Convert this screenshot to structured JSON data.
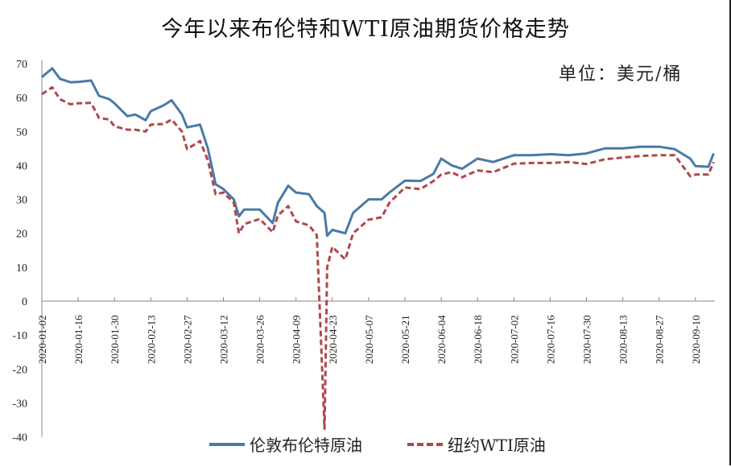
{
  "title": "今年以来布伦特和WTI原油期货价格走势",
  "unit_label": "单位：美元/桶",
  "legend": [
    {
      "label": "伦敦布伦特原油",
      "color": "#4a7aa8",
      "style": "solid"
    },
    {
      "label": "纽约WTI原油",
      "color": "#b0484b",
      "style": "dashed"
    }
  ],
  "chart_data": {
    "type": "line",
    "title": "今年以来布伦特和WTI原油期货价格走势",
    "xlabel": "",
    "ylabel": "单位：美元/桶",
    "ylim": [
      -40,
      70
    ],
    "yticks": [
      70,
      60,
      50,
      40,
      30,
      20,
      10,
      0,
      -10,
      -20,
      -30,
      -40
    ],
    "xtick_labels": [
      "2020-01-02",
      "2020-01-16",
      "2020-01-30",
      "2020-02-13",
      "2020-02-27",
      "2020-03-12",
      "2020-03-26",
      "2020-04-09",
      "2020-04-23",
      "2020-05-07",
      "2020-05-21",
      "2020-06-04",
      "2020-06-18",
      "2020-07-02",
      "2020-07-16",
      "2020-07-30",
      "2020-08-13",
      "2020-08-27",
      "2020-09-10"
    ],
    "grid": false,
    "legend_position": "bottom",
    "x": [
      "2020-01-02",
      "2020-01-06",
      "2020-01-09",
      "2020-01-13",
      "2020-01-16",
      "2020-01-21",
      "2020-01-24",
      "2020-01-28",
      "2020-01-30",
      "2020-02-04",
      "2020-02-07",
      "2020-02-11",
      "2020-02-13",
      "2020-02-18",
      "2020-02-21",
      "2020-02-25",
      "2020-02-27",
      "2020-03-03",
      "2020-03-06",
      "2020-03-09",
      "2020-03-12",
      "2020-03-16",
      "2020-03-18",
      "2020-03-20",
      "2020-03-26",
      "2020-03-31",
      "2020-04-02",
      "2020-04-06",
      "2020-04-09",
      "2020-04-14",
      "2020-04-17",
      "2020-04-20",
      "2020-04-21",
      "2020-04-23",
      "2020-04-28",
      "2020-05-01",
      "2020-05-07",
      "2020-05-12",
      "2020-05-15",
      "2020-05-21",
      "2020-05-27",
      "2020-06-01",
      "2020-06-04",
      "2020-06-08",
      "2020-06-12",
      "2020-06-18",
      "2020-06-24",
      "2020-07-02",
      "2020-07-09",
      "2020-07-16",
      "2020-07-23",
      "2020-07-30",
      "2020-08-06",
      "2020-08-13",
      "2020-08-20",
      "2020-08-27",
      "2020-09-02",
      "2020-09-08",
      "2020-09-10",
      "2020-09-15",
      "2020-09-17"
    ],
    "series": [
      {
        "name": "伦敦布伦特原油",
        "values": [
          66,
          68.6,
          65.5,
          64.5,
          64.6,
          65,
          60.5,
          59.5,
          58.3,
          54.5,
          55,
          53.3,
          56,
          57.7,
          59.2,
          55,
          51.2,
          52,
          45,
          34.5,
          33,
          30,
          25,
          27,
          27,
          23,
          29,
          34,
          32,
          31.5,
          28,
          26,
          19.3,
          21,
          20,
          26,
          30,
          30,
          32,
          35.5,
          35.4,
          37.5,
          42,
          40,
          39,
          42,
          41,
          43,
          43,
          43.3,
          43,
          43.5,
          45,
          45,
          45.5,
          45.5,
          44.8,
          42,
          39.8,
          39.6,
          43.5
        ]
      },
      {
        "name": "纽约WTI原油",
        "values": [
          61,
          63,
          59.5,
          58,
          58.3,
          58.4,
          54,
          53.5,
          51.5,
          50.5,
          50.5,
          50,
          52,
          52.2,
          53.5,
          50,
          44.8,
          47.2,
          41.5,
          31.5,
          32,
          29,
          20,
          22.7,
          24.2,
          20.3,
          25.3,
          28,
          23.5,
          22.3,
          19.5,
          -37.6,
          10,
          16,
          12.3,
          20,
          24,
          24.7,
          29,
          33.5,
          33,
          35.4,
          37.3,
          38,
          36.5,
          38.5,
          38,
          40.5,
          40.7,
          40.7,
          41,
          40.4,
          41.8,
          42.3,
          42.8,
          43,
          43,
          36.8,
          37.3,
          37.3,
          41
        ]
      }
    ]
  }
}
